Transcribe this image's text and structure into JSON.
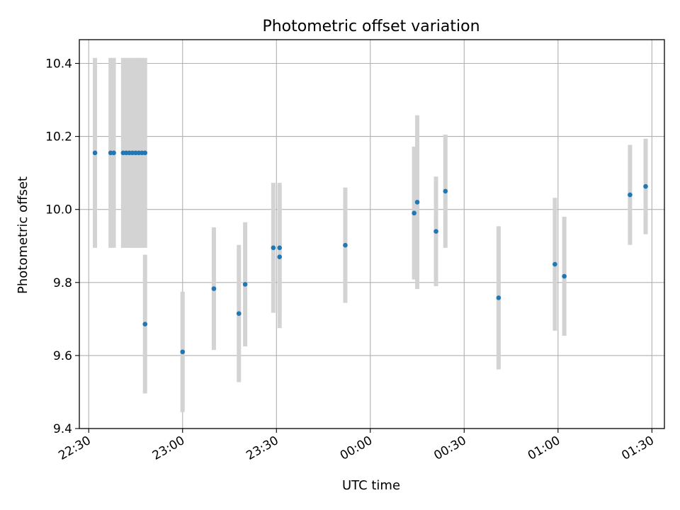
{
  "chart_data": {
    "type": "scatter",
    "title": "Photometric offset variation",
    "xlabel": "UTC time",
    "ylabel": "Photometric offset",
    "grid": true,
    "ylim": [
      9.4,
      10.465
    ],
    "xlim": [
      "22:27",
      "01:34"
    ],
    "yticks": [
      9.4,
      9.6,
      9.8,
      10.0,
      10.2,
      10.4
    ],
    "yticklabels": [
      "9.4",
      "9.6",
      "9.8",
      "10.0",
      "10.2",
      "10.4"
    ],
    "xticks": [
      "22:30",
      "23:00",
      "23:30",
      "00:00",
      "00:30",
      "01:00",
      "01:30"
    ],
    "marker_color": "#1f77b4",
    "errorbar_color": "#d3d3d3",
    "series": [
      {
        "x": [
          "22:32",
          "22:37",
          "22:38",
          "22:41",
          "22:42",
          "22:43",
          "22:44",
          "22:45",
          "22:46",
          "22:47",
          "22:48",
          "22:48",
          "23:00",
          "23:10",
          "23:18",
          "23:20",
          "23:29",
          "23:31",
          "23:31",
          "23:52",
          "00:14",
          "00:15",
          "00:21",
          "00:24",
          "00:41",
          "00:59",
          "01:02",
          "01:23",
          "01:28"
        ],
        "y": [
          10.155,
          10.155,
          10.155,
          10.155,
          10.155,
          10.155,
          10.155,
          10.155,
          10.155,
          10.155,
          10.155,
          9.686,
          9.61,
          9.783,
          9.715,
          9.795,
          9.895,
          9.895,
          9.87,
          9.902,
          9.99,
          10.02,
          9.94,
          10.05,
          9.758,
          9.85,
          9.817,
          10.04,
          10.063
        ],
        "yerr": [
          0.26,
          0.26,
          0.26,
          0.26,
          0.26,
          0.26,
          0.26,
          0.26,
          0.26,
          0.26,
          0.26,
          0.19,
          0.165,
          0.168,
          0.188,
          0.17,
          0.178,
          0.178,
          0.195,
          0.158,
          0.182,
          0.238,
          0.15,
          0.155,
          0.196,
          0.182,
          0.163,
          0.137,
          0.131
        ]
      }
    ]
  }
}
